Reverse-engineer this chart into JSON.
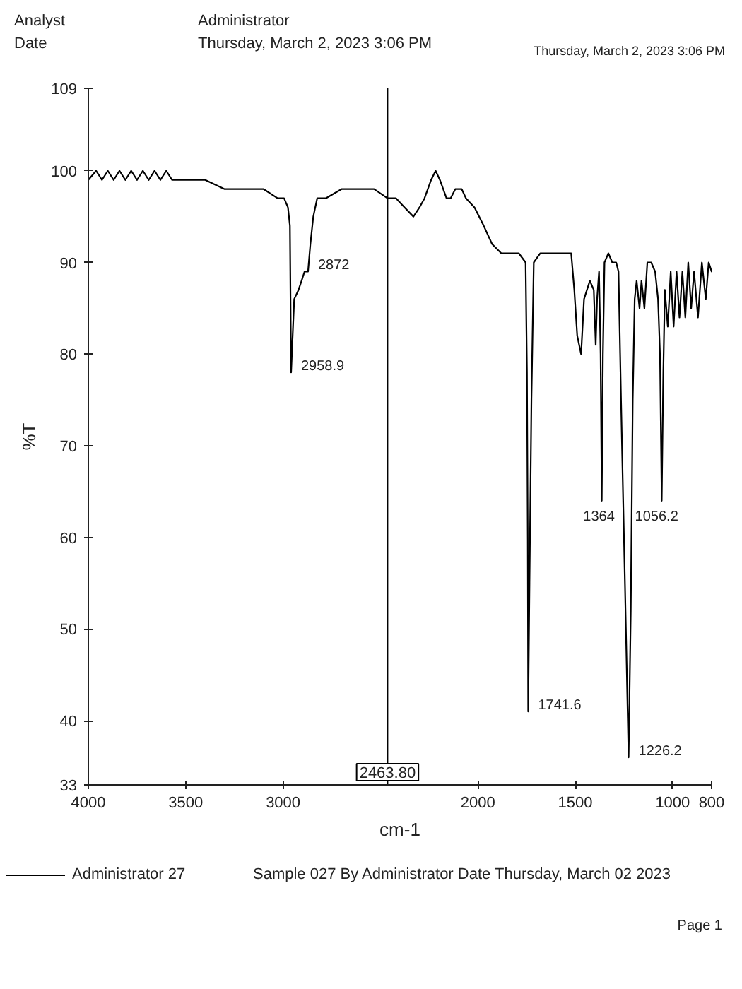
{
  "chart_data": {
    "type": "line",
    "xlabel": "cm-1",
    "ylabel": "%T",
    "xlim": [
      4000,
      800
    ],
    "ylim": [
      33,
      109
    ],
    "xticks": [
      4000,
      3500,
      3000,
      2000,
      1500,
      1000,
      800
    ],
    "yticks": [
      33,
      40,
      50,
      60,
      70,
      80,
      90,
      100,
      109
    ],
    "legend": "bottom",
    "x": [
      4000,
      3960,
      3930,
      3900,
      3870,
      3840,
      3810,
      3780,
      3750,
      3720,
      3690,
      3660,
      3630,
      3600,
      3570,
      3540,
      3500,
      3450,
      3400,
      3300,
      3200,
      3100,
      3028,
      2995,
      2975,
      2965,
      2958.9,
      2943,
      2921,
      2905,
      2890,
      2872,
      2860,
      2845,
      2825,
      2781,
      2700,
      2600,
      2533,
      2463.8,
      2420,
      2376,
      2331,
      2300,
      2274,
      2240,
      2217,
      2195,
      2161,
      2140,
      2116,
      2083,
      2061,
      2017,
      1970,
      1927,
      1880,
      1830,
      1790,
      1755,
      1748,
      1744,
      1741.6,
      1735,
      1725,
      1713,
      1680,
      1629,
      1574,
      1521,
      1505,
      1490,
      1470,
      1455,
      1425,
      1405,
      1395,
      1388,
      1378,
      1370,
      1364,
      1358,
      1350,
      1330,
      1310,
      1290,
      1278,
      1265,
      1245,
      1226.2,
      1215,
      1205,
      1195,
      1185,
      1170,
      1160,
      1145,
      1130,
      1110,
      1090,
      1075,
      1065,
      1056.2,
      1048,
      1040,
      1025,
      1010,
      995,
      980,
      965,
      950,
      935,
      920,
      905,
      890,
      870,
      850,
      830,
      815,
      800
    ],
    "series": [
      {
        "name": "Administrator 27",
        "color": "#000000",
        "values": [
          99,
          100,
          99,
          100,
          99,
          100,
          99,
          100,
          99,
          100,
          99,
          100,
          99,
          100,
          99,
          99,
          99,
          99,
          99,
          98,
          98,
          98,
          97,
          97,
          96,
          94,
          78,
          86,
          87,
          88,
          89,
          89,
          92,
          95,
          97,
          97,
          98,
          98,
          98,
          97,
          97,
          96,
          95,
          96,
          97,
          99,
          100,
          99,
          97,
          97,
          98,
          98,
          97,
          96,
          94,
          92,
          91,
          91,
          91,
          90,
          78,
          60,
          41,
          55,
          75,
          90,
          91,
          91,
          91,
          91,
          87,
          82,
          80,
          86,
          88,
          87,
          81,
          86,
          89,
          80,
          64,
          80,
          90,
          91,
          90,
          90,
          89,
          75,
          55,
          36,
          52,
          75,
          86,
          88,
          85,
          88,
          85,
          90,
          90,
          89,
          86,
          80,
          64,
          78,
          87,
          83,
          89,
          83,
          89,
          84,
          89,
          84,
          90,
          85,
          89,
          84,
          90,
          86,
          90,
          89
        ]
      }
    ],
    "ref_lines": [
      {
        "axis": "x",
        "value": 2463.8,
        "label": "2463.80",
        "color": "#000000"
      }
    ],
    "annotations": [
      "Analyst",
      "Date",
      "Administrator",
      "Thursday, March 2, 2023 3:06 PM",
      "Thursday, March 2, 2023 3:06 PM",
      "Sample 027 By Administrator Date Thursday, March 02 2023",
      "Page 1",
      {
        "text": "2958.9",
        "x": 2958.9,
        "y": 78
      },
      {
        "text": "2872",
        "x": 2872,
        "y": 89
      },
      {
        "text": "1741.6",
        "x": 1741.6,
        "y": 41
      },
      {
        "text": "1364",
        "x": 1364,
        "y": 64
      },
      {
        "text": "1226.2",
        "x": 1226.2,
        "y": 36
      },
      {
        "text": "1056.2",
        "x": 1056.2,
        "y": 64
      }
    ]
  }
}
